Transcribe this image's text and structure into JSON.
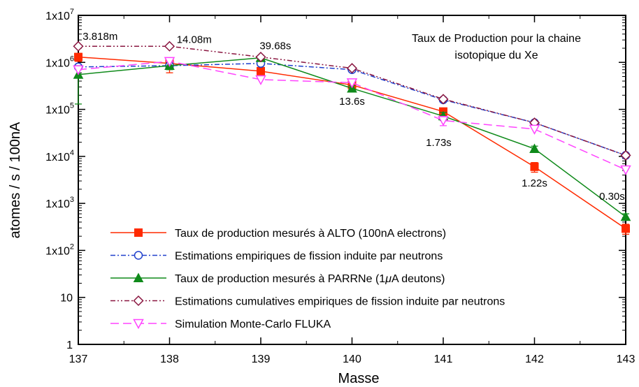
{
  "chart_data": {
    "type": "line",
    "title": "Taux de Production pour la chaine isotopique du Xe",
    "title_lines": [
      "Taux de Production pour la chaine",
      "isotopique du Xe"
    ],
    "xlabel": "Masse",
    "ylabel": "atomes / s / 100nA",
    "y_scale": "log",
    "xlim": [
      137,
      143
    ],
    "ylim": [
      1,
      10000000
    ],
    "x_ticks": [
      137,
      138,
      139,
      140,
      141,
      142,
      143
    ],
    "y_ticks": [
      {
        "value": 1,
        "label": "1"
      },
      {
        "value": 10,
        "label": "10"
      },
      {
        "value": 100,
        "label": "1x10",
        "exp": "2"
      },
      {
        "value": 1000,
        "label": "1x10",
        "exp": "3"
      },
      {
        "value": 10000,
        "label": "1x10",
        "exp": "4"
      },
      {
        "value": 100000,
        "label": "1x10",
        "exp": "5"
      },
      {
        "value": 1000000,
        "label": "1x10",
        "exp": "6"
      },
      {
        "value": 10000000,
        "label": "1x10",
        "exp": "7"
      }
    ],
    "x": [
      137,
      138,
      139,
      140,
      141,
      142,
      143
    ],
    "series": [
      {
        "name": "Taux de production mesurés à ALTO (100nA electrons)",
        "color": "#ff2a00",
        "dash": "solid",
        "marker": "square",
        "values": [
          1300000,
          950000,
          650000,
          330000,
          90000,
          6000,
          290
        ],
        "err_low": [
          1050000,
          600000,
          560000,
          290000,
          73000,
          4600,
          220
        ],
        "err_high": [
          1550000,
          1250000,
          740000,
          370000,
          106000,
          7400,
          360
        ]
      },
      {
        "name": "Estimations empiriques de fission induite par neutrons",
        "color": "#1f3fcc",
        "dash": "dashdot",
        "marker": "circle",
        "values": [
          800000,
          850000,
          950000,
          700000,
          160000,
          52000,
          10500
        ]
      },
      {
        "name": "Taux de production mesurés à PARRNe (1μA deutons)",
        "name_parts": [
          "Taux de production mesurés à PARRNe (1",
          "μ",
          "A deutons)"
        ],
        "color": "#0f8a1a",
        "dash": "solid",
        "marker": "triangle",
        "values": [
          550000,
          850000,
          1250000,
          280000,
          72000,
          14500,
          520
        ],
        "err_low": [
          130000,
          700000,
          1100000,
          240000,
          58000,
          12500,
          440
        ],
        "err_high": [
          850000,
          1000000,
          1400000,
          320000,
          86000,
          16500,
          600
        ]
      },
      {
        "name": "Estimations cumulatives empiriques de fission induite par neutrons",
        "color": "#8a1640",
        "dash": "dashdotdot",
        "marker": "diamond",
        "values": [
          2200000,
          2200000,
          1300000,
          750000,
          165000,
          52000,
          10500
        ]
      },
      {
        "name": "Simulation Monte-Carlo FLUKA",
        "color": "#ff44ff",
        "dash": "longdash",
        "marker": "triangle-down",
        "values": [
          700000,
          1050000,
          430000,
          370000,
          58000,
          38000,
          5200
        ],
        "err_low": [
          null,
          null,
          null,
          null,
          45000,
          null,
          null
        ],
        "err_high": [
          null,
          null,
          null,
          null,
          71000,
          null,
          null
        ]
      }
    ],
    "annotations": [
      {
        "text": "3.818m",
        "x": 137.24,
        "y": 3000000
      },
      {
        "text": "14.08m",
        "x": 138.27,
        "y": 2600000
      },
      {
        "text": "39.68s",
        "x": 139.16,
        "y": 1900000
      },
      {
        "text": "13.6s",
        "x": 140.0,
        "y": 125000
      },
      {
        "text": "1.73s",
        "x": 140.95,
        "y": 16500
      },
      {
        "text": "1.22s",
        "x": 142.0,
        "y": 2300
      },
      {
        "text": "0.30s",
        "x": 142.85,
        "y": 1200
      }
    ],
    "grid": false,
    "legend_position": "bottom-left"
  }
}
